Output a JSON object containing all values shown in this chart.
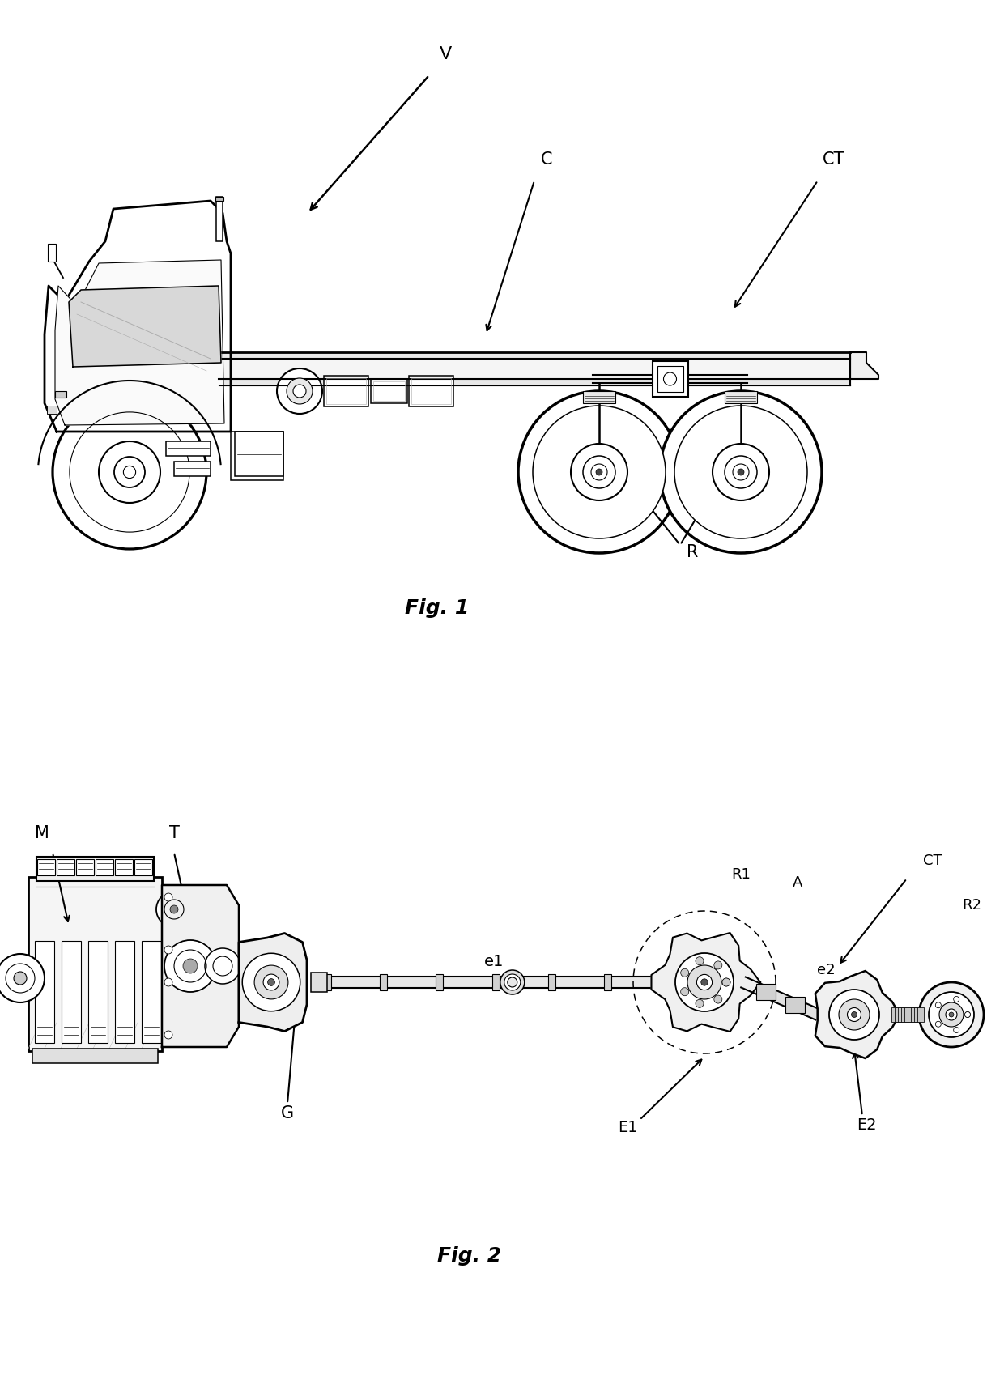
{
  "bg_color": "#ffffff",
  "fig_width": 12.4,
  "fig_height": 17.03,
  "fig1_label": "Fig. 1",
  "fig2_label": "Fig. 2",
  "label_V": "V",
  "label_C": "C",
  "label_CT_fig1": "CT",
  "label_R": "R",
  "label_M": "M",
  "label_T": "T",
  "label_G": "G",
  "label_e1": "e1",
  "label_E1": "E1",
  "label_R1": "R1",
  "label_A": "A",
  "label_CT_fig2": "CT",
  "label_e2": "e2",
  "label_R2": "R2",
  "label_E2": "E2",
  "line_color": "#000000",
  "line_width": 1.5,
  "thin_line": 0.8,
  "text_color": "#000000",
  "label_fontsize": 13,
  "fig_label_fontsize": 16
}
